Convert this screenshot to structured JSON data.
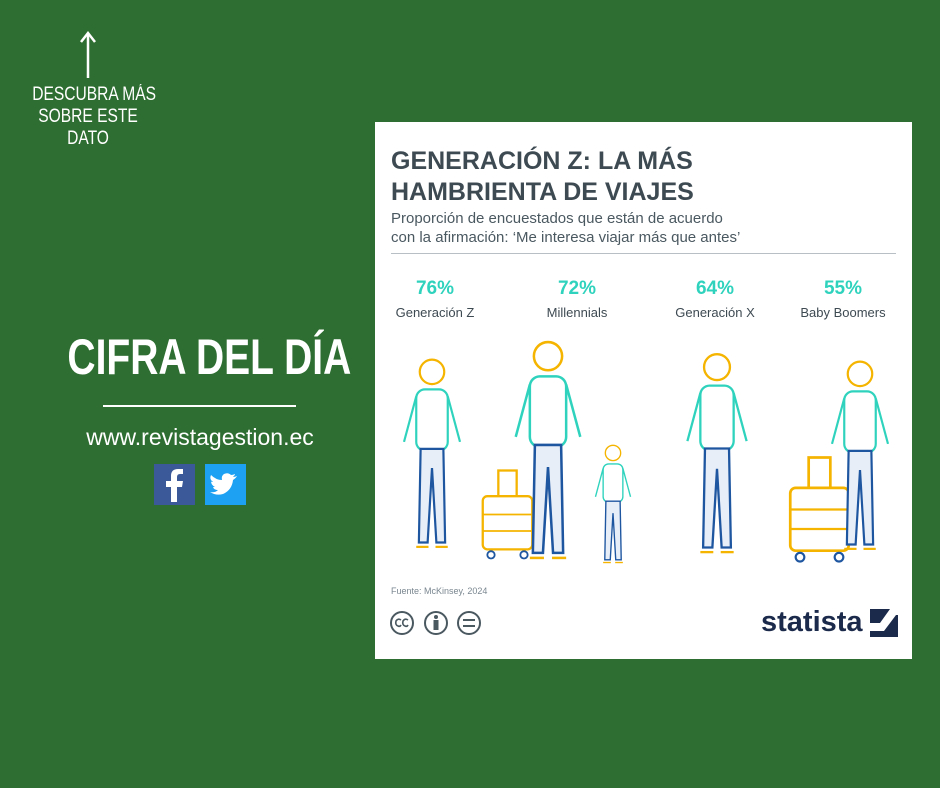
{
  "cta": [
    "DESCUBRA MÁS",
    "SOBRE ESTE",
    "DATO"
  ],
  "heading": "CIFRA DEL DÍA",
  "website": "www.revistagestion.ec",
  "card": {
    "title": [
      "GENERACIÓN Z: LA MÁS",
      "HAMBRIENTA DE VIAJES"
    ],
    "subtitle": [
      "Proporción de encuestados que están de acuerdo",
      "con la afirmación: ‘Me interesa viajar más que antes’"
    ],
    "groups": [
      {
        "value": "76%",
        "label": "Generación Z"
      },
      {
        "value": "72%",
        "label": "Millennials"
      },
      {
        "value": "64%",
        "label": "Generación X"
      },
      {
        "value": "55%",
        "label": "Baby Boomers"
      }
    ],
    "source": "Fuente: McKinsey, 2024",
    "brand": "statista"
  }
}
